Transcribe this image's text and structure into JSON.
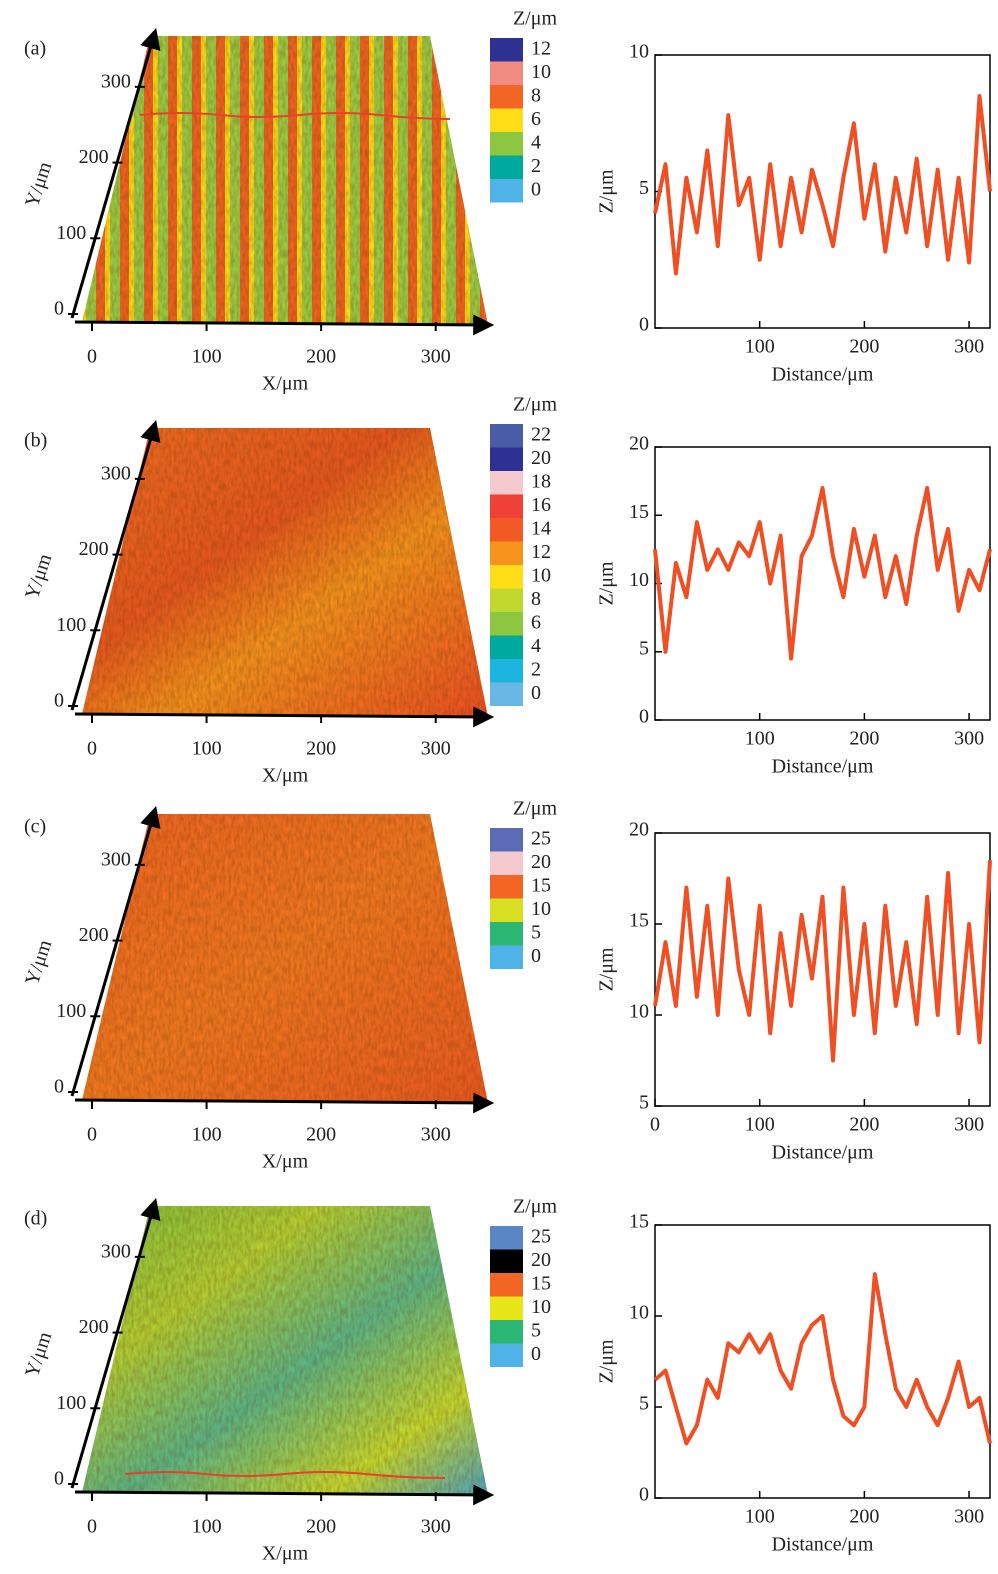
{
  "chart_data": [
    {
      "type": "surface3d",
      "panel_label": "(a)",
      "xlabel": "X/μm",
      "ylabel": "Y/μm",
      "xlim": [
        0,
        350
      ],
      "ylim": [
        0,
        350
      ],
      "xticks": [
        0,
        100,
        200,
        300
      ],
      "yticks": [
        0,
        100,
        200,
        300
      ],
      "colorbar_title": "Z/μm",
      "colorbar_values": [
        12,
        10,
        8,
        6,
        4,
        2,
        0
      ],
      "colorbar_colors": [
        "#2e3192",
        "#f08c82",
        "#f26522",
        "#ffde17",
        "#8dc63f",
        "#00a99d",
        "#4fb3e8"
      ]
    },
    {
      "type": "line",
      "xlabel": "Distance/μm",
      "ylabel": "Z/μm",
      "xlim": [
        0,
        320
      ],
      "ylim": [
        0,
        10
      ],
      "xticks": [
        100,
        200,
        300
      ],
      "yticks": [
        0,
        5,
        10
      ],
      "color": "#f04e23",
      "x": [
        0,
        10,
        20,
        30,
        40,
        50,
        60,
        70,
        80,
        90,
        100,
        110,
        120,
        130,
        140,
        150,
        160,
        170,
        180,
        190,
        200,
        210,
        220,
        230,
        240,
        250,
        260,
        270,
        280,
        290,
        300,
        310,
        320
      ],
      "values": [
        4.2,
        6.0,
        2.0,
        5.5,
        3.5,
        6.5,
        3.0,
        7.8,
        4.5,
        5.5,
        2.5,
        6.0,
        3.0,
        5.5,
        3.5,
        5.8,
        4.5,
        3.0,
        5.5,
        7.5,
        4.0,
        6.0,
        2.8,
        5.5,
        3.5,
        6.2,
        3.0,
        5.8,
        2.5,
        5.5,
        2.4,
        8.5,
        5.0
      ]
    },
    {
      "type": "surface3d",
      "panel_label": "(b)",
      "xlabel": "X/μm",
      "ylabel": "Y/μm",
      "xlim": [
        0,
        350
      ],
      "ylim": [
        0,
        350
      ],
      "xticks": [
        0,
        100,
        200,
        300
      ],
      "yticks": [
        0,
        100,
        200,
        300
      ],
      "colorbar_title": "Z/μm",
      "colorbar_values": [
        22,
        20,
        18,
        16,
        14,
        12,
        10,
        8,
        6,
        4,
        2,
        0
      ],
      "colorbar_colors": [
        "#4a5ba8",
        "#2e3192",
        "#f6c9cf",
        "#ef4136",
        "#f15a24",
        "#f7941d",
        "#ffde17",
        "#c1d82f",
        "#8dc63f",
        "#00a99d",
        "#1cb5e0",
        "#6ab6e4"
      ]
    },
    {
      "type": "line",
      "xlabel": "Distance/μm",
      "ylabel": "Z/μm",
      "xlim": [
        0,
        320
      ],
      "ylim": [
        0,
        20
      ],
      "xticks": [
        100,
        200,
        300
      ],
      "yticks": [
        0,
        5,
        10,
        15,
        20
      ],
      "color": "#f04e23",
      "x": [
        0,
        10,
        20,
        30,
        40,
        50,
        60,
        70,
        80,
        90,
        100,
        110,
        120,
        130,
        140,
        150,
        160,
        170,
        180,
        190,
        200,
        210,
        220,
        230,
        240,
        250,
        260,
        270,
        280,
        290,
        300,
        310,
        320
      ],
      "values": [
        12.5,
        5.0,
        11.5,
        9.0,
        14.5,
        11.0,
        12.5,
        11.0,
        13.0,
        12.0,
        14.5,
        10.0,
        13.5,
        4.5,
        12.0,
        13.5,
        17.0,
        12.0,
        9.0,
        14.0,
        10.5,
        13.5,
        9.0,
        12.0,
        8.5,
        13.5,
        17.0,
        11.0,
        14.0,
        8.0,
        11.0,
        9.5,
        12.5
      ]
    },
    {
      "type": "surface3d",
      "panel_label": "(c)",
      "xlabel": "X/μm",
      "ylabel": "Y/μm",
      "xlim": [
        0,
        350
      ],
      "ylim": [
        0,
        350
      ],
      "xticks": [
        0,
        100,
        200,
        300
      ],
      "yticks": [
        0,
        100,
        200,
        300
      ],
      "colorbar_title": "Z/μm",
      "colorbar_values": [
        25,
        20,
        15,
        10,
        5,
        0
      ],
      "colorbar_colors": [
        "#5b6bb5",
        "#f6c9cf",
        "#f26522",
        "#d7df23",
        "#2bb673",
        "#4fb3e8"
      ]
    },
    {
      "type": "line",
      "xlabel": "Distance/μm",
      "ylabel": "Z/μm",
      "xlim": [
        0,
        320
      ],
      "ylim": [
        5,
        20
      ],
      "xticks": [
        0,
        100,
        200,
        300
      ],
      "yticks": [
        5,
        10,
        15,
        20
      ],
      "color": "#f04e23",
      "x": [
        0,
        10,
        20,
        30,
        40,
        50,
        60,
        70,
        80,
        90,
        100,
        110,
        120,
        130,
        140,
        150,
        160,
        170,
        180,
        190,
        200,
        210,
        220,
        230,
        240,
        250,
        260,
        270,
        280,
        290,
        300,
        310,
        320
      ],
      "values": [
        10.5,
        14.0,
        10.5,
        17.0,
        11.0,
        16.0,
        10.0,
        17.5,
        12.5,
        10.0,
        16.0,
        9.0,
        14.5,
        10.5,
        15.5,
        12.0,
        16.5,
        7.5,
        17.0,
        10.0,
        15.0,
        9.0,
        16.0,
        10.5,
        14.0,
        9.5,
        16.5,
        10.0,
        17.8,
        9.0,
        15.0,
        8.5,
        18.5
      ]
    },
    {
      "type": "surface3d",
      "panel_label": "(d)",
      "xlabel": "X/μm",
      "ylabel": "Y/μm",
      "xlim": [
        0,
        350
      ],
      "ylim": [
        0,
        350
      ],
      "xticks": [
        0,
        100,
        200,
        300
      ],
      "yticks": [
        0,
        100,
        200,
        300
      ],
      "colorbar_title": "Z/μm",
      "colorbar_values": [
        25,
        20,
        15,
        10,
        5,
        0
      ],
      "colorbar_colors": [
        "#5b86c5",
        "#000000",
        "#f26522",
        "#e6e619",
        "#2bb673",
        "#4fb3e8"
      ]
    },
    {
      "type": "line",
      "xlabel": "Distance/μm",
      "ylabel": "Z/μm",
      "xlim": [
        0,
        320
      ],
      "ylim": [
        0,
        15
      ],
      "xticks": [
        100,
        200,
        300
      ],
      "yticks": [
        0,
        5,
        10,
        15
      ],
      "color": "#f04e23",
      "x": [
        0,
        10,
        20,
        30,
        40,
        50,
        60,
        70,
        80,
        90,
        100,
        110,
        120,
        130,
        140,
        150,
        160,
        170,
        180,
        190,
        200,
        210,
        220,
        230,
        240,
        250,
        260,
        270,
        280,
        290,
        300,
        310,
        320
      ],
      "values": [
        6.5,
        7.0,
        5.0,
        3.0,
        4.0,
        6.5,
        5.5,
        8.5,
        8.0,
        9.0,
        8.0,
        9.0,
        7.0,
        6.0,
        8.5,
        9.5,
        10.0,
        6.5,
        4.5,
        4.0,
        5.0,
        12.3,
        9.0,
        6.0,
        5.0,
        6.5,
        5.0,
        4.0,
        5.5,
        7.5,
        5.0,
        5.5,
        3.0
      ]
    }
  ]
}
